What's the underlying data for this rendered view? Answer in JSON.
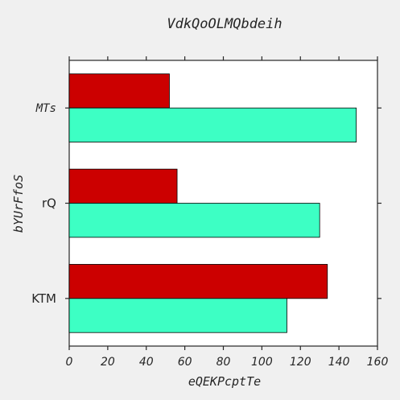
{
  "chart_data": {
    "type": "bar",
    "orientation": "horizontal",
    "title": "VdkQoOLMQbdeih",
    "xlabel": "eQEKPcptTe",
    "ylabel": "bYUrFfoS",
    "categories": [
      "KTM",
      "rQ",
      "MTs"
    ],
    "series": [
      {
        "color": "#cc0000",
        "values": [
          134,
          56,
          52
        ]
      },
      {
        "color": "#3dffc4",
        "values": [
          113,
          130,
          149
        ]
      }
    ],
    "xlim": [
      0,
      160
    ],
    "xticks": [
      "0",
      "20",
      "40",
      "60",
      "80",
      "100",
      "120",
      "140",
      "160"
    ],
    "grid": false,
    "legend": "none"
  }
}
